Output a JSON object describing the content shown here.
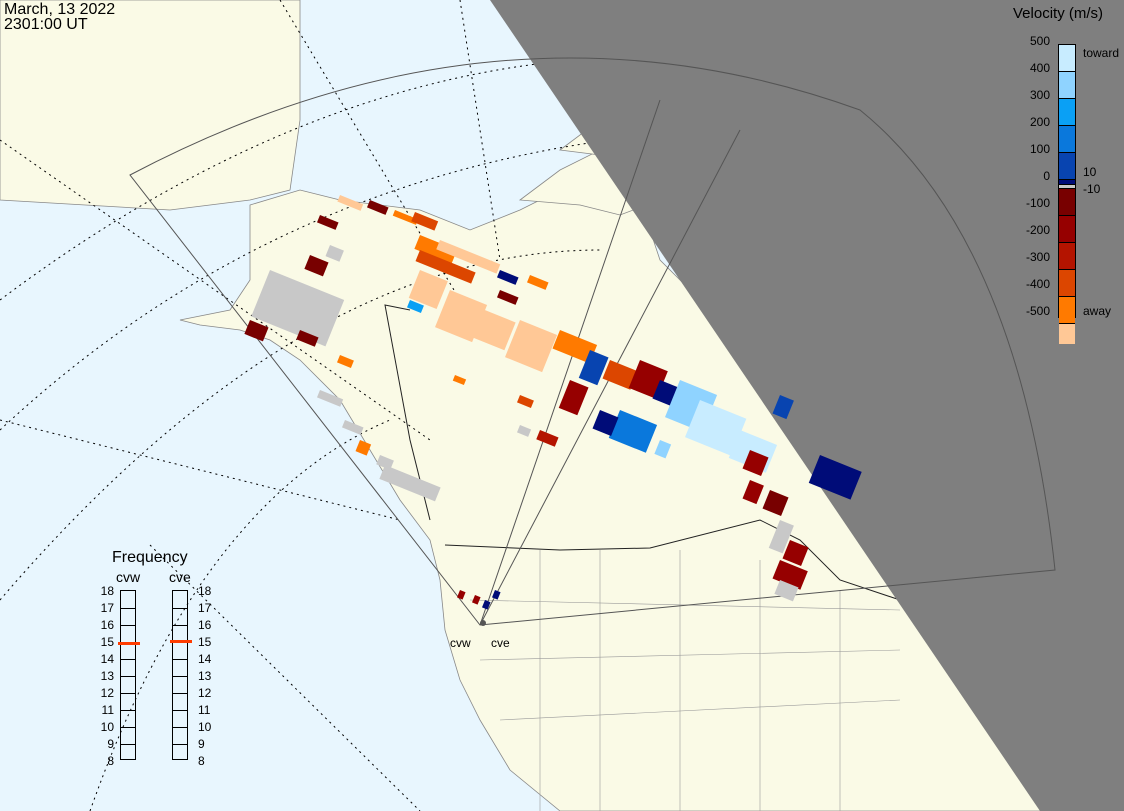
{
  "header": {
    "date": "March, 13 2022",
    "time": "2301:00 UT"
  },
  "legend": {
    "title": "Velocity (m/s)",
    "ticks": [
      "500",
      "400",
      "300",
      "200",
      "100",
      "0",
      "-100",
      "-200",
      "-300",
      "-400",
      "-500"
    ],
    "toward_label": "toward",
    "away_label": "away",
    "inner_pos": "10",
    "inner_neg": "-10",
    "colors": [
      "#c8ecff",
      "#8fd3ff",
      "#0aa0f5",
      "#0a78dc",
      "#0844b0",
      "#000c78",
      "#c8c8c8",
      "#780000",
      "#960000",
      "#b41400",
      "#dc4600",
      "#ff7a00",
      "#ffc896"
    ]
  },
  "frequency": {
    "title": "Frequency",
    "ticks": [
      "18",
      "17",
      "16",
      "15",
      "14",
      "13",
      "12",
      "11",
      "10",
      "9",
      "8"
    ],
    "radars": [
      {
        "name": "cvw",
        "value_mhz": 14.9
      },
      {
        "name": "cve",
        "value_mhz": 15.0
      }
    ],
    "marker_color": "#ff3c00"
  },
  "radars": {
    "site_labels": [
      "cvw",
      "cve"
    ]
  },
  "colors": {
    "ocean": "#e8f6fe",
    "land": "#fafae6",
    "night": "#7f7f7f",
    "no_data_gray": "#c8c8c8"
  }
}
